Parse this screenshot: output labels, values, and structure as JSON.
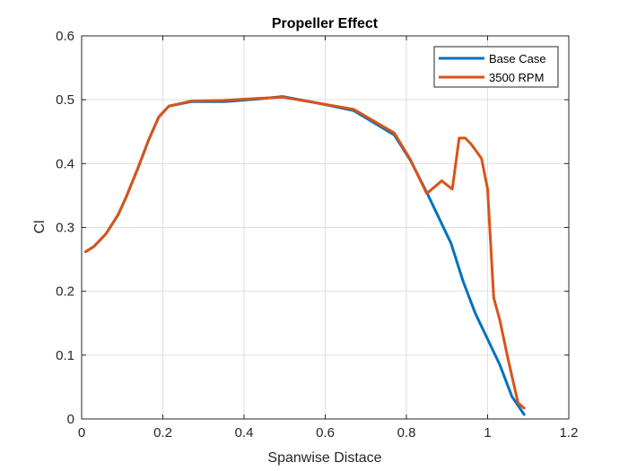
{
  "chart_data": {
    "type": "line",
    "title": "Propeller Effect",
    "xlabel": "Spanwise Distace",
    "ylabel": "Cl",
    "xlim": [
      0,
      1.2
    ],
    "ylim": [
      0,
      0.6
    ],
    "xticks": [
      0,
      0.2,
      0.4,
      0.6,
      0.8,
      1,
      1.2
    ],
    "xtick_labels": [
      "0",
      "0.2",
      "0.4",
      "0.6",
      "0.8",
      "1",
      "1.2"
    ],
    "yticks": [
      0,
      0.1,
      0.2,
      0.3,
      0.4,
      0.5,
      0.6
    ],
    "ytick_labels": [
      "0",
      "0.1",
      "0.2",
      "0.3",
      "0.4",
      "0.5",
      "0.6"
    ],
    "grid": true,
    "legend_position": "top-right",
    "series": [
      {
        "name": "Base Case",
        "color": "#0072BD",
        "x": [
          0.01,
          0.03,
          0.06,
          0.09,
          0.11,
          0.14,
          0.165,
          0.19,
          0.215,
          0.27,
          0.35,
          0.43,
          0.495,
          0.58,
          0.67,
          0.77,
          0.81,
          0.85,
          0.88,
          0.91,
          0.94,
          0.97,
          1.0,
          1.03,
          1.06,
          1.09
        ],
        "y": [
          0.262,
          0.27,
          0.29,
          0.32,
          0.348,
          0.395,
          0.437,
          0.473,
          0.49,
          0.497,
          0.497,
          0.501,
          0.505,
          0.495,
          0.483,
          0.445,
          0.405,
          0.355,
          0.315,
          0.275,
          0.215,
          0.165,
          0.125,
          0.085,
          0.035,
          0.007
        ]
      },
      {
        "name": "3500 RPM",
        "color": "#D95319",
        "x": [
          0.01,
          0.03,
          0.06,
          0.09,
          0.11,
          0.14,
          0.165,
          0.19,
          0.215,
          0.27,
          0.35,
          0.43,
          0.495,
          0.58,
          0.67,
          0.77,
          0.81,
          0.85,
          0.887,
          0.913,
          0.93,
          0.945,
          0.96,
          0.985,
          1.0,
          1.015,
          1.03,
          1.05,
          1.075,
          1.09
        ],
        "y": [
          0.262,
          0.27,
          0.29,
          0.32,
          0.348,
          0.395,
          0.437,
          0.473,
          0.49,
          0.498,
          0.499,
          0.502,
          0.504,
          0.495,
          0.485,
          0.448,
          0.406,
          0.353,
          0.373,
          0.36,
          0.44,
          0.44,
          0.43,
          0.408,
          0.36,
          0.19,
          0.155,
          0.095,
          0.025,
          0.017
        ]
      }
    ]
  }
}
